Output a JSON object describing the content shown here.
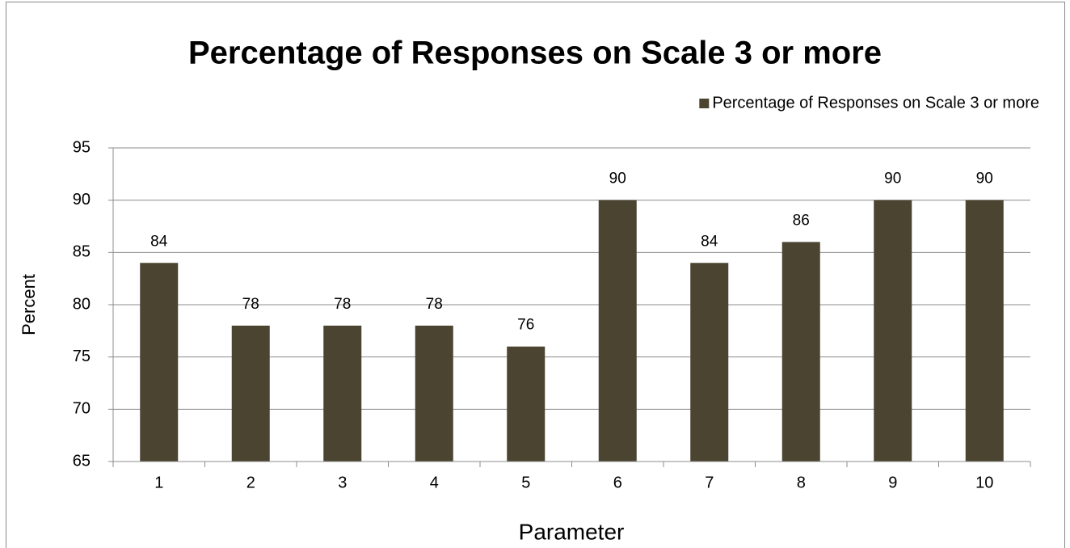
{
  "chart_data": {
    "type": "bar",
    "title": "Percentage of Responses on Scale 3 or more",
    "xlabel": "Parameter",
    "ylabel": "Percent",
    "categories": [
      "1",
      "2",
      "3",
      "4",
      "5",
      "6",
      "7",
      "8",
      "9",
      "10"
    ],
    "series": [
      {
        "name": "Percentage of Responses on Scale 3 or more",
        "color": "#4a4430",
        "values": [
          84,
          78,
          78,
          78,
          76,
          90,
          84,
          86,
          90,
          90
        ]
      }
    ],
    "ylim": [
      65,
      95
    ],
    "yticks": [
      65,
      70,
      75,
      80,
      85,
      90,
      95
    ],
    "grid": true,
    "legend": "top-right"
  }
}
